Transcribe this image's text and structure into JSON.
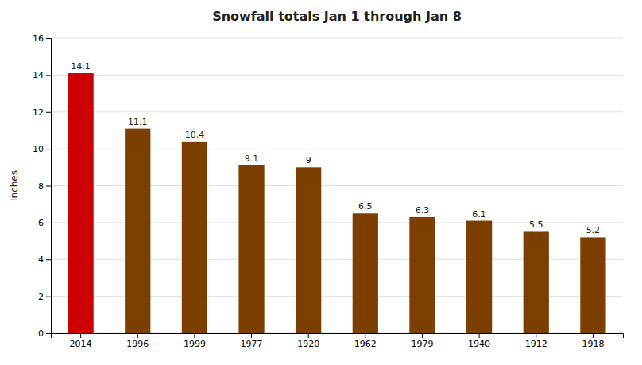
{
  "chart_data": {
    "type": "bar",
    "title": "Snowfall totals Jan 1 through Jan 8",
    "ylabel": "Inches",
    "categories": [
      "2014",
      "1996",
      "1999",
      "1977",
      "1920",
      "1962",
      "1979",
      "1940",
      "1912",
      "1918"
    ],
    "values": [
      14.1,
      11.1,
      10.4,
      9.1,
      9.0,
      6.5,
      6.3,
      6.1,
      5.5,
      5.2
    ],
    "colors": [
      "#cc0000",
      "#7b3f00",
      "#7b3f00",
      "#7b3f00",
      "#7b3f00",
      "#7b3f00",
      "#7b3f00",
      "#7b3f00",
      "#7b3f00",
      "#7b3f00"
    ],
    "ylim": [
      0,
      16
    ],
    "yticks": [
      0,
      2,
      4,
      6,
      8,
      10,
      12,
      14,
      16
    ],
    "grid": true,
    "data_labels": true
  }
}
